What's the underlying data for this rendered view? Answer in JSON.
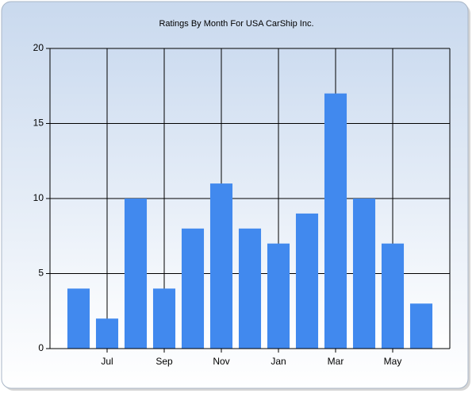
{
  "chart_data": {
    "type": "bar",
    "title": "Ratings By Month For USA CarShip Inc.",
    "categories": [
      null,
      "Jul",
      null,
      "Sep",
      null,
      "Nov",
      null,
      "Jan",
      null,
      "Mar",
      null,
      "May",
      null
    ],
    "values": [
      4,
      2,
      10,
      4,
      8,
      11,
      8,
      7,
      9,
      17,
      10,
      7,
      3
    ],
    "color": "#4189ee",
    "ylim": [
      0,
      20
    ],
    "yticks": [
      0,
      5,
      10,
      15,
      20
    ],
    "grid": true
  }
}
